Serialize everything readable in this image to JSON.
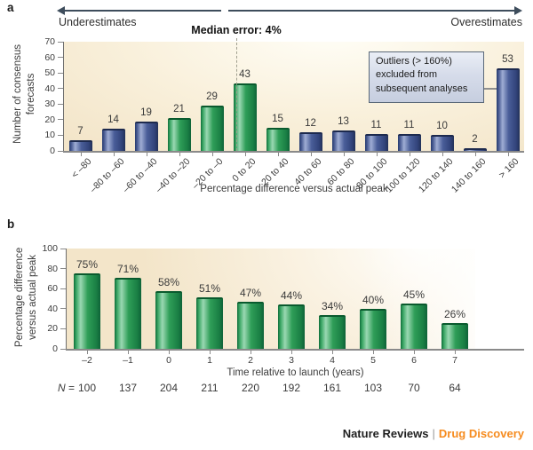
{
  "ui": {
    "panel_a_letter": "a",
    "panel_b_letter": "b",
    "underestimates_label": "Underestimates",
    "overestimates_label": "Overestimates",
    "median_annotation": "Median error: 4%",
    "callout_lines": [
      "Outliers (> 160%)",
      "excluded from",
      "subsequent analyses"
    ],
    "n_italic": "N",
    "n_equals": "=",
    "footer_left": "Nature Reviews",
    "footer_separator": "|",
    "footer_right": "Drug Discovery",
    "colors": {
      "green_bar": "#2f9e58",
      "blue_bar": "#4a5e99",
      "accent_orange": "#f68b1e",
      "plot_background": "#f5e8cd",
      "axis_gray": "#8a8a8a",
      "arrow_slate": "#3e4d5c"
    }
  },
  "chart_data": [
    {
      "id": "a",
      "type": "bar",
      "categories": [
        "< –80",
        "–80 to –60",
        "–60 to –40",
        "–40 to –20",
        "–20 to –0",
        "0 to 20",
        "20 to 40",
        "40 to 60",
        "60 to 80",
        "80 to 100",
        "100 to 120",
        "120 to 140",
        "140 to 160",
        "> 160"
      ],
      "values": [
        7,
        14,
        19,
        21,
        29,
        43,
        15,
        12,
        13,
        11,
        11,
        10,
        2,
        53
      ],
      "bar_colors": [
        "blue",
        "blue",
        "blue",
        "green",
        "green",
        "green",
        "green",
        "blue",
        "blue",
        "blue",
        "blue",
        "blue",
        "blue",
        "blue"
      ],
      "xlabel": "Percentage difference versus actual peak",
      "ylabel": "Number of consensus forecasts",
      "ylabel_lines": [
        "Number of consensus",
        "forecasts"
      ],
      "ylim": [
        0,
        70
      ],
      "yticks": [
        0,
        10,
        20,
        30,
        40,
        50,
        60,
        70
      ],
      "grid": false,
      "annotations": {
        "median": "Median error: 4%",
        "left_arrow": "Underestimates",
        "right_arrow": "Overestimates",
        "callout": "Outliers (> 160%) excluded from subsequent analyses"
      }
    },
    {
      "id": "b",
      "type": "bar",
      "categories": [
        "–2",
        "–1",
        "0",
        "1",
        "2",
        "3",
        "4",
        "5",
        "6",
        "7"
      ],
      "values": [
        75,
        71,
        58,
        51,
        47,
        44,
        34,
        40,
        45,
        26
      ],
      "value_labels": [
        "75%",
        "71%",
        "58%",
        "51%",
        "47%",
        "44%",
        "34%",
        "40%",
        "45%",
        "26%"
      ],
      "n_values": [
        100,
        137,
        204,
        211,
        220,
        192,
        161,
        103,
        70,
        64
      ],
      "xlabel": "Time relative to launch (years)",
      "ylabel": "Percentage difference versus actual peak",
      "ylabel_lines": [
        "Percentage difference",
        "versus actual peak"
      ],
      "ylim": [
        0,
        100
      ],
      "yticks": [
        0,
        20,
        40,
        60,
        80,
        100
      ],
      "grid": false
    }
  ]
}
